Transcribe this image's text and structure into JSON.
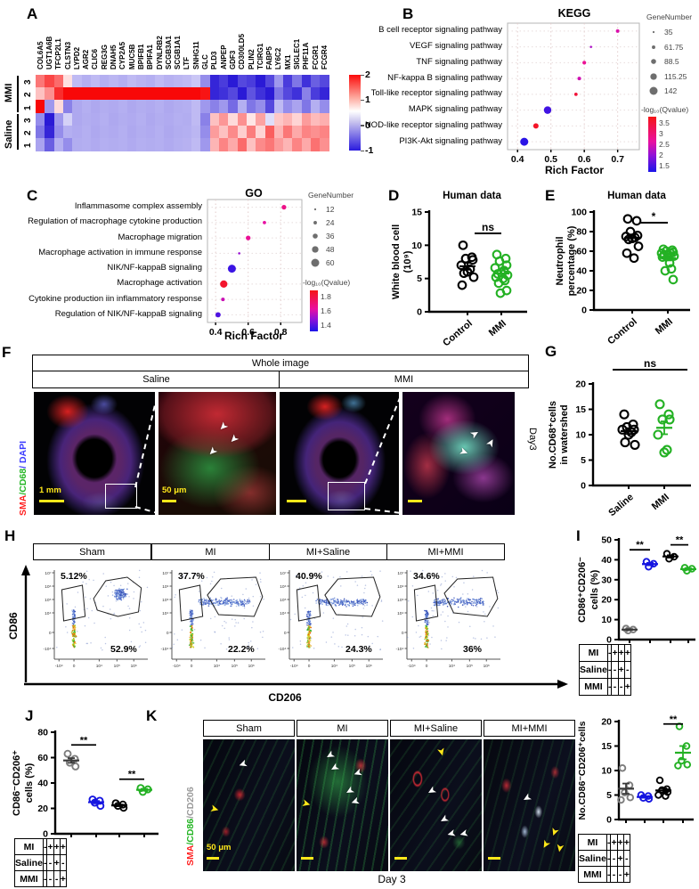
{
  "A": {
    "label": "A",
    "genes": [
      "COL6A5",
      "UGT1A6B",
      "TFCP2L1",
      "CLSTN3",
      "LYPD2",
      "AGR2",
      "CLIC6",
      "REG3G",
      "DNAH5",
      "CYP2A5",
      "MUC5B",
      "BPIFB1",
      "BPIFA1",
      "DYNLRB2",
      "SCGB3A1",
      "SCGB1A1",
      "LTF",
      "SNHG11",
      "GLC",
      "PLD3",
      "ANPEP",
      "GDF3",
      "CD300LD5",
      "PLIN2",
      "TCIRG1",
      "FABP5",
      "LY6C2",
      "MX1",
      "SIGLEC1",
      "PHF11A",
      "FCGR1",
      "FCGR4"
    ],
    "groups": [
      {
        "name": "MMI",
        "rows": [
          "3",
          "2",
          "1"
        ]
      },
      {
        "name": "Saline",
        "rows": [
          "3",
          "2",
          "1"
        ]
      }
    ],
    "matrix": [
      [
        1.1,
        1.5,
        1.2,
        0.25,
        -0.3,
        -0.35,
        -0.3,
        -0.35,
        -0.32,
        -0.35,
        -0.3,
        -0.33,
        -0.35,
        -0.3,
        -0.34,
        -0.32,
        -0.3,
        -0.25,
        -0.5,
        -0.95,
        -0.85,
        -1,
        -0.8,
        -0.85,
        -1,
        -0.8,
        -0.45,
        -0.85,
        -0.6,
        -0.9,
        -0.7,
        -0.8
      ],
      [
        0.5,
        0.9,
        1.7,
        2,
        2,
        2,
        2,
        2,
        2,
        2,
        2,
        2,
        2,
        2,
        2,
        2,
        2,
        2,
        1.9,
        -0.95,
        -0.9,
        -0.8,
        -1,
        -0.75,
        -0.9,
        -1,
        -0.6,
        -0.8,
        -0.9,
        -0.55,
        -0.85,
        -0.95
      ],
      [
        2,
        -0.45,
        0.3,
        -0.55,
        -0.38,
        -0.35,
        -0.38,
        -0.36,
        -0.37,
        -0.35,
        -0.38,
        -0.36,
        -0.37,
        -0.35,
        -0.38,
        -0.36,
        -0.35,
        -0.3,
        -0.45,
        -0.55,
        -0.45,
        -0.65,
        -0.35,
        -0.6,
        -0.5,
        -0.8,
        -0.3,
        -0.5,
        -0.4,
        -0.6,
        -0.35,
        -0.5
      ],
      [
        -0.5,
        -1,
        -0.45,
        -0.2,
        -0.38,
        -0.36,
        -0.37,
        -0.35,
        -0.38,
        -0.36,
        -0.37,
        -0.35,
        -0.38,
        -0.36,
        -0.37,
        -0.35,
        -0.36,
        -0.3,
        -0.55,
        0.5,
        0.85,
        0.3,
        0.9,
        0.2,
        0.75,
        -0.15,
        0.45,
        0.6,
        0.35,
        0.8,
        0.55,
        0.65
      ],
      [
        -0.6,
        -0.95,
        -0.5,
        -0.35,
        -0.37,
        -0.35,
        -0.38,
        -0.36,
        -0.37,
        -0.35,
        -0.38,
        -0.36,
        -0.37,
        -0.35,
        -0.38,
        -0.36,
        -0.35,
        -0.32,
        -0.5,
        0.8,
        0.5,
        0.95,
        0.4,
        1.05,
        0.35,
        1.3,
        0.6,
        1.1,
        0.7,
        1.0,
        0.9,
        1.0
      ],
      [
        -0.4,
        -0.7,
        -0.35,
        -0.5,
        -0.36,
        -0.35,
        -0.37,
        -0.35,
        -0.36,
        -0.35,
        -0.37,
        -0.35,
        -0.36,
        -0.35,
        -0.37,
        -0.35,
        -0.34,
        -0.3,
        -0.45,
        0.6,
        1.0,
        0.7,
        1.2,
        0.5,
        0.95,
        1.1,
        0.8,
        0.6,
        1.0,
        0.7,
        1.15,
        0.9
      ]
    ],
    "scale_ticks": [
      "2",
      "1",
      "0",
      "-1"
    ]
  },
  "B": {
    "label": "B",
    "title": "KEGG",
    "xlabel": "Rich Factor",
    "xticks": [
      "0.4",
      "0.5",
      "0.6",
      "0.7"
    ],
    "size_legend": {
      "title": "GeneNumber",
      "items": [
        "35",
        "61.75",
        "88.5",
        "115.25",
        "142"
      ]
    },
    "color_legend": {
      "title": "-log₁₀(Qvalue)",
      "ticks": [
        "3.5",
        "3",
        "2.5",
        "2",
        "1.5"
      ]
    },
    "points": [
      {
        "name": "B cell receptor signaling pathway",
        "rich": 0.7,
        "n": 58,
        "q": 2.6
      },
      {
        "name": "VEGF signaling pathway",
        "rich": 0.62,
        "n": 35,
        "q": 2.2
      },
      {
        "name": "TNF signaling pathway",
        "rich": 0.6,
        "n": 62,
        "q": 2.8
      },
      {
        "name": "NF-kappa B signaling pathway",
        "rich": 0.585,
        "n": 60,
        "q": 2.5
      },
      {
        "name": "Toll-like receptor signaling pathway",
        "rich": 0.575,
        "n": 55,
        "q": 3.3
      },
      {
        "name": "MAPK signaling pathway",
        "rich": 0.49,
        "n": 132,
        "q": 1.45
      },
      {
        "name": "NOD-like receptor signaling pathway",
        "rich": 0.455,
        "n": 92,
        "q": 3.4
      },
      {
        "name": "PI3K-Akt signaling pathway",
        "rich": 0.42,
        "n": 142,
        "q": 1.3
      }
    ]
  },
  "C": {
    "label": "C",
    "title": "GO",
    "xlabel": "Rich Factor",
    "xticks": [
      "0.4",
      "0.6",
      "0.8"
    ],
    "size_legend": {
      "title": "GeneNumber",
      "items": [
        "12",
        "24",
        "36",
        "48",
        "60"
      ]
    },
    "color_legend": {
      "title": "-log₁₀(Qvalue)",
      "ticks": [
        "1.8",
        "1.6",
        "1.4"
      ]
    },
    "points": [
      {
        "name": "Inflammasome complex assembly",
        "rich": 0.82,
        "n": 30,
        "q": 1.7
      },
      {
        "name": "Regulation of macrophage cytokine production",
        "rich": 0.7,
        "n": 20,
        "q": 1.66
      },
      {
        "name": "Macrophage migration",
        "rich": 0.6,
        "n": 30,
        "q": 1.68
      },
      {
        "name": "Macrophage activation in immune response",
        "rich": 0.545,
        "n": 12,
        "q": 1.5
      },
      {
        "name": "NIK/NF-kappaB signaling",
        "rich": 0.5,
        "n": 55,
        "q": 1.35
      },
      {
        "name": "Macrophage activation",
        "rich": 0.45,
        "n": 50,
        "q": 1.82
      },
      {
        "name": "Cytokine production iin inflammatory response",
        "rich": 0.445,
        "n": 22,
        "q": 1.6
      },
      {
        "name": "Regulation of NIK/NF-kappaB signaling",
        "rich": 0.415,
        "n": 34,
        "q": 1.38
      }
    ]
  },
  "D": {
    "label": "D",
    "title": "Human data",
    "ylabel": [
      "White blood cell",
      "(10⁹)"
    ],
    "ymax": 15,
    "yticks": [
      "0",
      "5",
      "10",
      "15"
    ],
    "sig": "ns",
    "groups": [
      {
        "name": "Control",
        "color": "#000000",
        "values": [
          10,
          8.2,
          8,
          7.8,
          7,
          6.4,
          6,
          5.8,
          5.2,
          4
        ]
      },
      {
        "name": "MMI",
        "color": "#24b124",
        "values": [
          8.6,
          8,
          7.6,
          7,
          6.6,
          6.2,
          5.9,
          5.7,
          5.5,
          5.2,
          5,
          4.7,
          4.3,
          3.2,
          2.8
        ]
      }
    ]
  },
  "E": {
    "label": "E",
    "title": "Human data",
    "ylabel": [
      "Neutrophil",
      "percentage (%)"
    ],
    "ymax": 100,
    "yticks": [
      "0",
      "20",
      "40",
      "60",
      "80",
      "100"
    ],
    "sig": "*",
    "groups": [
      {
        "name": "Control",
        "color": "#000000",
        "values": [
          93,
          91,
          80,
          76,
          75,
          74,
          73,
          72,
          65,
          58,
          53
        ]
      },
      {
        "name": "MMI",
        "color": "#24b124",
        "values": [
          62,
          61,
          60,
          59,
          58,
          58,
          57,
          56,
          55,
          54,
          48,
          42,
          40,
          31
        ]
      }
    ]
  },
  "F": {
    "label": "F",
    "header": "Whole image",
    "cols": [
      "Saline",
      "MMI"
    ],
    "stain": [
      {
        "text": "SMA",
        "color": "#ff1f1f"
      },
      {
        "text": "/CD68",
        "color": "#23b523"
      },
      {
        "text": "/ DAPI",
        "color": "#3a3aff"
      }
    ],
    "scale1": "1 mm",
    "scale2": "50 μm",
    "day": "Day3"
  },
  "G": {
    "label": "G",
    "ylabel": [
      "No.CD68⁺cells",
      "in watershed"
    ],
    "ymax": 20,
    "yticks": [
      "0",
      "5",
      "10",
      "15",
      "20"
    ],
    "sig": "ns",
    "groups": [
      {
        "name": "Saline",
        "color": "#000000",
        "values": [
          14,
          12,
          11.5,
          11,
          11,
          10.5,
          10,
          8.5,
          8
        ]
      },
      {
        "name": "MMI",
        "color": "#24b124",
        "values": [
          16,
          14,
          13,
          13,
          10,
          7,
          6.5
        ]
      }
    ]
  },
  "H": {
    "label": "H",
    "cols": [
      "Sham",
      "MI",
      "MI+Saline",
      "MI+MMI"
    ],
    "ylab": "CD86",
    "xlab": "CD206",
    "yticks": [
      "10⁷",
      "10⁶",
      "10⁵",
      "10⁴",
      "0",
      "-10⁴"
    ],
    "xticks": [
      "-10⁴",
      "0",
      "10⁴",
      "10⁵",
      "10⁶"
    ],
    "plots": [
      {
        "p1": "5.12%",
        "p2": "52.9%"
      },
      {
        "p1": "37.7%",
        "p2": "22.2%"
      },
      {
        "p1": "40.9%",
        "p2": "24.3%"
      },
      {
        "p1": "34.6%",
        "p2": "36%"
      }
    ]
  },
  "I": {
    "label": "I",
    "ylabel": [
      "CD86⁺CD206⁻",
      "cells (%)"
    ],
    "ymax": 50,
    "yticks": [
      "0",
      "10",
      "20",
      "30",
      "40",
      "50"
    ],
    "groups": [
      {
        "name": "Sham",
        "color": "#7d7d7d",
        "values": [
          5.5,
          5,
          4.5
        ]
      },
      {
        "name": "MI",
        "color": "#1515e0",
        "values": [
          39,
          38,
          36.5
        ]
      },
      {
        "name": "MI+Saline",
        "color": "#000000",
        "values": [
          43,
          41.5,
          40.5
        ]
      },
      {
        "name": "MI+MMI",
        "color": "#24b124",
        "values": [
          36,
          35.5,
          34.5
        ]
      }
    ],
    "sigs": [
      {
        "a": 0,
        "b": 1,
        "y": 45,
        "label": "**"
      },
      {
        "a": 2,
        "b": 3,
        "y": 47.5,
        "label": "**"
      }
    ],
    "table": {
      "rows": [
        {
          "label": "MI",
          "cells": [
            "-",
            "+",
            "+",
            "+"
          ]
        },
        {
          "label": "Saline",
          "cells": [
            "-",
            "-",
            "+",
            "-"
          ]
        },
        {
          "label": "MMI",
          "cells": [
            "-",
            "-",
            "-",
            "+"
          ]
        }
      ]
    }
  },
  "J": {
    "label": "J",
    "ylabel": [
      "CD86⁻CD206⁺",
      "cells (%)"
    ],
    "ymax": 80,
    "yticks": [
      "0",
      "20",
      "40",
      "60",
      "80"
    ],
    "groups": [
      {
        "name": "Sham",
        "color": "#7d7d7d",
        "values": [
          63,
          59,
          56,
          53
        ]
      },
      {
        "name": "MI",
        "color": "#1515e0",
        "values": [
          27,
          26,
          24.5,
          22
        ]
      },
      {
        "name": "MI+Saline",
        "color": "#000000",
        "values": [
          24,
          23,
          22,
          20.5
        ]
      },
      {
        "name": "MI+MMI",
        "color": "#24b124",
        "values": [
          36,
          35,
          33
        ]
      }
    ],
    "sigs": [
      {
        "a": 0,
        "b": 1,
        "y": 70,
        "label": "**"
      },
      {
        "a": 2,
        "b": 3,
        "y": 43,
        "label": "**"
      }
    ],
    "table": {
      "rows": [
        {
          "label": "MI",
          "cells": [
            "-",
            "+",
            "+",
            "+"
          ]
        },
        {
          "label": "Saline",
          "cells": [
            "-",
            "-",
            "+",
            "-"
          ]
        },
        {
          "label": "MMI",
          "cells": [
            "-",
            "-",
            "-",
            "+"
          ]
        }
      ]
    }
  },
  "K": {
    "label": "K",
    "cols": [
      "Sham",
      "MI",
      "MI+Saline",
      "MI+MMI"
    ],
    "stain": [
      {
        "text": "SMA",
        "color": "#ff1f1f"
      },
      {
        "text": "/CD86",
        "color": "#23b523"
      },
      {
        "text": "/CD206",
        "color": "#9a9a9a"
      }
    ],
    "scale": "50 μm",
    "bottom": "Day 3",
    "plot": {
      "ylabel": [
        "No.CD86⁻CD206⁺cells"
      ],
      "ymax": 20,
      "yticks": [
        "0",
        "5",
        "10",
        "15",
        "20"
      ],
      "groups": [
        {
          "name": "Sham",
          "color": "#7d7d7d",
          "values": [
            10.5,
            7,
            5.5,
            4.5,
            4
          ]
        },
        {
          "name": "MI",
          "color": "#1515e0",
          "values": [
            5,
            4.8,
            4.4,
            4.2
          ]
        },
        {
          "name": "MI+Saline",
          "color": "#000000",
          "values": [
            8,
            6.2,
            6,
            5.6,
            5,
            4.8
          ]
        },
        {
          "name": "MI+MMI",
          "color": "#24b124",
          "values": [
            19,
            15,
            12,
            11.2,
            11
          ]
        }
      ],
      "sigs": [
        {
          "a": 2,
          "b": 3,
          "y": 19.5,
          "label": "**"
        }
      ]
    },
    "table": {
      "rows": [
        {
          "label": "MI",
          "cells": [
            "-",
            "+",
            "+",
            "+"
          ]
        },
        {
          "label": "Saline",
          "cells": [
            "-",
            "-",
            "+",
            "-"
          ]
        },
        {
          "label": "MMI",
          "cells": [
            "-",
            "-",
            "-",
            "+"
          ]
        }
      ]
    }
  }
}
